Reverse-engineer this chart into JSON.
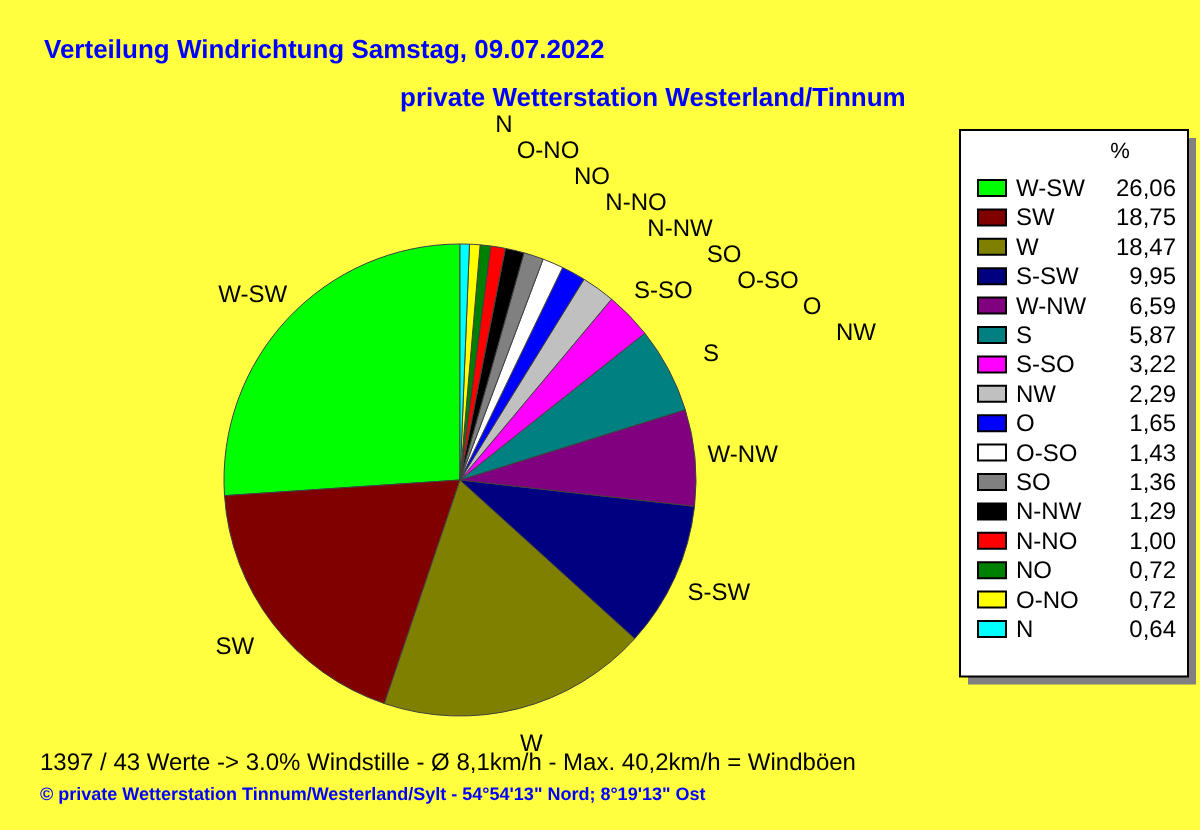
{
  "chart_data": {
    "type": "pie",
    "title": "Verteilung Windrichtung   Samstag, 09.07.2022",
    "subtitle": "private Wetterstation Westerland/Tinnum",
    "categories": [
      "W-SW",
      "SW",
      "W",
      "S-SW",
      "W-NW",
      "S",
      "S-SO",
      "NW",
      "O",
      "O-SO",
      "SO",
      "N-NW",
      "N-NO",
      "NO",
      "O-NO",
      "N"
    ],
    "values": [
      26.06,
      18.75,
      18.47,
      9.95,
      6.59,
      5.87,
      3.22,
      2.29,
      1.65,
      1.43,
      1.36,
      1.29,
      1.0,
      0.72,
      0.72,
      0.64
    ],
    "value_labels": [
      "26,06",
      "18,75",
      "18,47",
      "9,95",
      "6,59",
      "5,87",
      "3,22",
      "2,29",
      "1,65",
      "1,43",
      "1,36",
      "1,29",
      "1,00",
      "0,72",
      "0,72",
      "0,64"
    ],
    "colors": [
      "#00ff00",
      "#800000",
      "#808000",
      "#000080",
      "#800080",
      "#008080",
      "#ff00ff",
      "#c0c0c0",
      "#0000ff",
      "#ffffff",
      "#808080",
      "#000000",
      "#ff0000",
      "#008000",
      "#ffff00",
      "#00ffff"
    ],
    "legend": "right",
    "legend_title": "%",
    "annotations": [
      "1397 / 43 Werte  -> 3.0% Windstille   -   Ø 8,1km/h  -  Max. 40,2km/h = Windböen",
      "© private Wetterstation Tinnum/Westerland/Sylt  -  54°54'13\" Nord; 8°19'13\" Ost"
    ]
  }
}
